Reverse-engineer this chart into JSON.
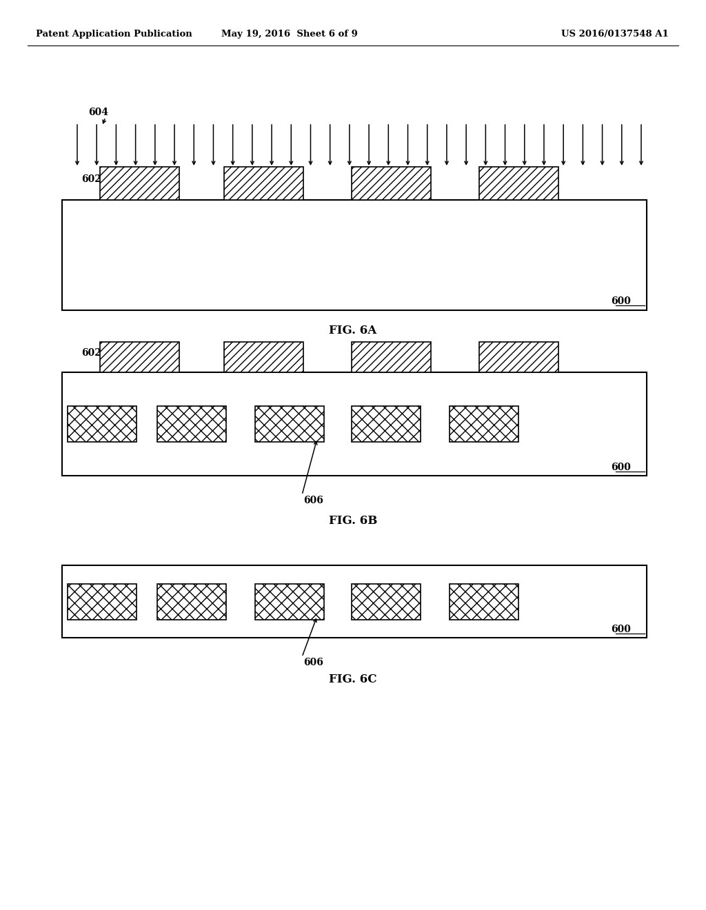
{
  "bg_color": "#ffffff",
  "header_left": "Patent Application Publication",
  "header_center": "May 19, 2016  Sheet 6 of 9",
  "header_right": "US 2016/0137548 A1",
  "fig6a_label": "FIG. 6A",
  "fig6b_label": "FIG. 6B",
  "fig6c_label": "FIG. 6C",
  "label_604": "604",
  "label_602_6a": "602",
  "label_602_6b": "602",
  "label_600_6a": "600",
  "label_600_6b": "600",
  "label_600_6c": "600",
  "label_606_6b": "606",
  "label_606_6c": "606"
}
